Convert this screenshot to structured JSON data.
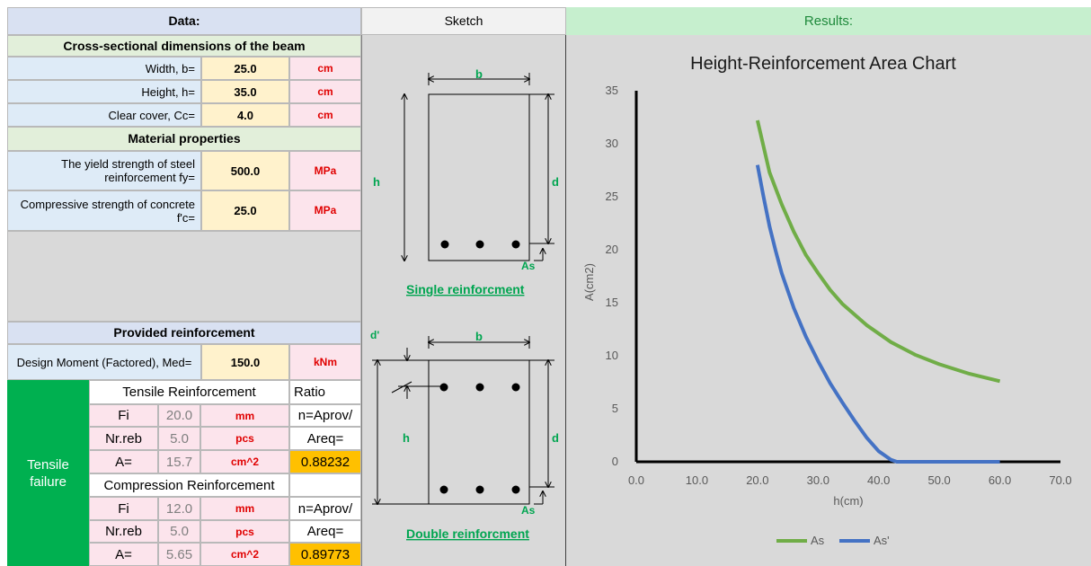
{
  "data_panel": {
    "title": "Data:",
    "section_dims": "Cross-sectional dimensions of the beam",
    "rows": [
      {
        "label": "Width, b=",
        "value": "25.0",
        "unit": "cm"
      },
      {
        "label": "Height, h=",
        "value": "35.0",
        "unit": "cm"
      },
      {
        "label": "Clear cover, Cc=",
        "value": "4.0",
        "unit": "cm"
      }
    ],
    "section_material": "Material properties",
    "material_rows": [
      {
        "label": "The yield strength of steel reinforcement fy=",
        "value": "500.0",
        "unit": "MPa"
      },
      {
        "label": "Compressive strength of concrete f'c=",
        "value": "25.0",
        "unit": "MPa"
      }
    ],
    "section_provided": "Provided reinforcement",
    "moment": {
      "label": "Design Moment (Factored), Med=",
      "value": "150.0",
      "unit": "kNm"
    },
    "failure_label": "Tensile failure",
    "tensile": {
      "title": "Tensile Reinforcement",
      "ratio_title": "Ratio",
      "rows": [
        {
          "name": "Fi",
          "value": "20.0",
          "unit": "mm",
          "ratio": "n=Aprov/"
        },
        {
          "name": "Nr.reb",
          "value": "5.0",
          "unit": "pcs",
          "ratio": "Areq="
        },
        {
          "name": "A=",
          "value": "15.7",
          "unit": "cm^2",
          "ratio": "0.88232"
        }
      ]
    },
    "compression": {
      "title": "Compression Reinforcement",
      "rows": [
        {
          "name": "Fi",
          "value": "12.0",
          "unit": "mm",
          "ratio": "n=Aprov/"
        },
        {
          "name": "Nr.reb",
          "value": "5.0",
          "unit": "pcs",
          "ratio": "Areq="
        },
        {
          "name": "A=",
          "value": "5.65",
          "unit": "cm^2",
          "ratio": "0.89773"
        }
      ]
    }
  },
  "sketch": {
    "title": "Sketch",
    "single": {
      "b": "b",
      "h": "h",
      "d": "d",
      "as": "As",
      "caption": "Single reinforcment"
    },
    "double": {
      "dprime": "d'",
      "b": "b",
      "h": "h",
      "d": "d",
      "as": "As",
      "caption": "Double reinforcment"
    }
  },
  "results": {
    "title": "Results:"
  },
  "colors": {
    "as_line": "#70ad47",
    "as_prime_line": "#4472c4",
    "sketch_label": "#00a550"
  },
  "chart_data": {
    "type": "line",
    "title": "Height-Reinforcement Area Chart",
    "xlabel": "h(cm)",
    "ylabel": "A(cm2)",
    "xlim": [
      0,
      70
    ],
    "ylim": [
      0,
      35
    ],
    "x_ticks": [
      "0.0",
      "10.0",
      "20.0",
      "30.0",
      "40.0",
      "50.0",
      "60.0",
      "70.0"
    ],
    "y_ticks": [
      "0",
      "5",
      "10",
      "15",
      "20",
      "25",
      "30",
      "35"
    ],
    "grid": false,
    "legend_position": "bottom",
    "series": [
      {
        "name": "As",
        "x": [
          20,
          22,
          24,
          26,
          28,
          30,
          32,
          34,
          38,
          42,
          46,
          50,
          55,
          60
        ],
        "y": [
          32.2,
          27.3,
          24.3,
          21.7,
          19.5,
          17.8,
          16.2,
          14.9,
          12.9,
          11.3,
          10.1,
          9.2,
          8.3,
          7.6
        ]
      },
      {
        "name": "As'",
        "x": [
          20,
          21,
          22,
          23,
          24,
          26,
          28,
          30,
          32,
          34,
          36,
          38,
          40,
          42,
          43,
          44,
          50,
          60
        ],
        "y": [
          28.0,
          25.0,
          22.2,
          19.9,
          17.8,
          14.5,
          11.8,
          9.5,
          7.4,
          5.6,
          3.9,
          2.3,
          1.0,
          0.2,
          0,
          0,
          0,
          0
        ]
      }
    ]
  }
}
